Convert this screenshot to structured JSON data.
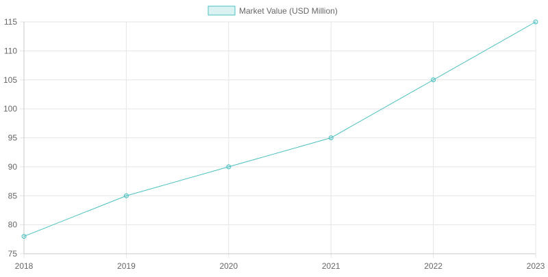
{
  "chart_data": {
    "type": "line",
    "categories": [
      "2018",
      "2019",
      "2020",
      "2021",
      "2022",
      "2023"
    ],
    "series": [
      {
        "name": "Market Value (USD Million)",
        "values": [
          78,
          85,
          90,
          95,
          105,
          115
        ],
        "color": "#4bc0c0",
        "fill": "rgba(75,192,192,0.2)"
      }
    ],
    "ylim": [
      75,
      115
    ],
    "yticks": [
      75,
      80,
      85,
      90,
      95,
      100,
      105,
      110,
      115
    ],
    "grid": true,
    "legend_position": "top-center",
    "title": "",
    "xlabel": "",
    "ylabel": ""
  },
  "colors": {
    "grid": "#e5e5e5",
    "axis": "#c8c8c8",
    "tick_text": "#666666"
  }
}
